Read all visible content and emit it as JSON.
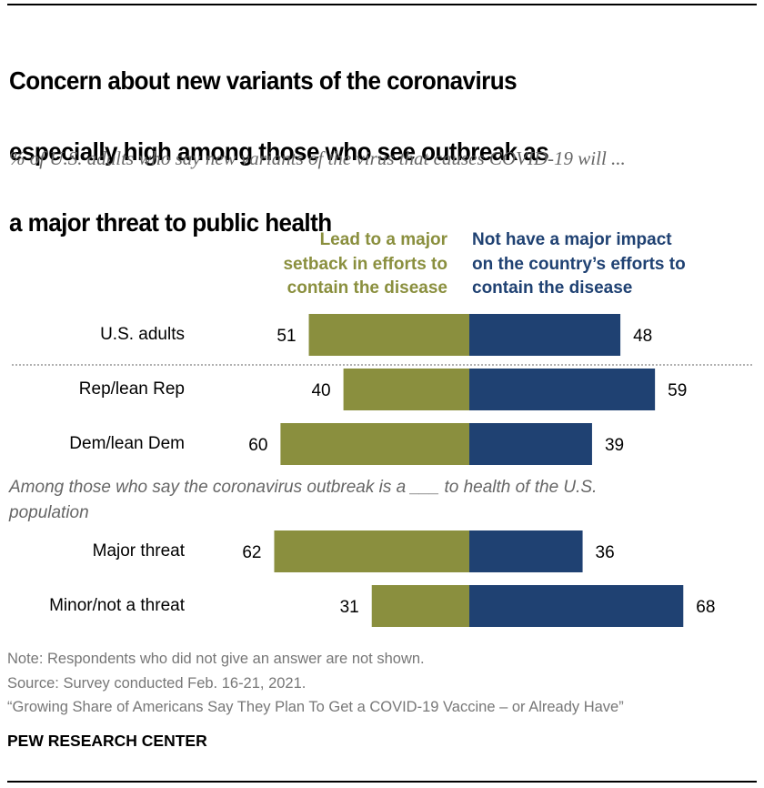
{
  "header": {
    "title_lines": [
      "Concern about new variants of the coronavirus",
      "especially high among those who see outbreak as",
      "a major threat to public health"
    ],
    "subtitle": "% of U.S. adults who say new variants of the virus that causes COVID-19 will ..."
  },
  "legend": {
    "left_lines": [
      "Lead to a major",
      "setback in efforts to",
      "contain the disease"
    ],
    "right_lines": [
      "Not have a major impact",
      "on the country’s efforts to",
      "contain the disease"
    ]
  },
  "group_note": "Among those who say the coronavirus outbreak is a ___ to health of the U.S. population",
  "footer": {
    "note": "Note: Respondents who did not give an answer are not shown.",
    "source": "Source: Survey conducted Feb. 16-21, 2021.",
    "report": "“Growing Share of Americans Say They Plan To Get a COVID-19 Vaccine – or Already Have”",
    "brand": "PEW RESEARCH CENTER"
  },
  "colors": {
    "setback": "#8a8f3e",
    "no_impact": "#1f4172"
  },
  "chart_data": {
    "type": "bar",
    "orientation": "horizontal-diverging",
    "title": "Concern about new variants of the coronavirus especially high among those who see outbreak as a major threat to public health",
    "subtitle": "% of U.S. adults who say new variants of the virus that causes COVID-19 will ...",
    "categories": [
      "U.S. adults",
      "Rep/lean Rep",
      "Dem/lean Dem",
      "Major threat",
      "Minor/not a threat"
    ],
    "series": [
      {
        "name": "Lead to a major setback in efforts to contain the disease",
        "values": [
          51,
          40,
          60,
          62,
          31
        ],
        "color": "#8a8f3e",
        "direction": "left"
      },
      {
        "name": "Not have a major impact on the country’s efforts to contain the disease",
        "values": [
          48,
          59,
          39,
          36,
          68
        ],
        "color": "#1f4172",
        "direction": "right"
      }
    ],
    "xlabel": "",
    "ylabel": "",
    "xlim": [
      -70,
      70
    ],
    "grid": false,
    "legend_position": "top"
  }
}
